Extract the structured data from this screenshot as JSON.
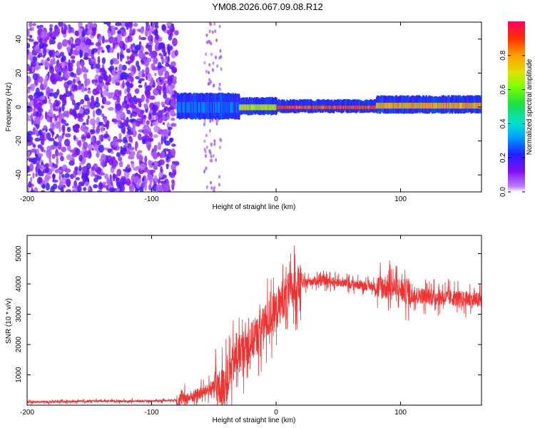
{
  "title": "YM08.2026.067.09.08.R12",
  "chart_data": [
    {
      "type": "heatmap",
      "name": "spectrogram",
      "xlabel": "Height of straight line (km)",
      "ylabel": "Frequency (Hz)",
      "xlim": [
        -200,
        165
      ],
      "ylim": [
        -50,
        50
      ],
      "xticks": [
        -200,
        -100,
        0,
        100
      ],
      "yticks": [
        -40,
        -20,
        0,
        20,
        40
      ],
      "colorbar": {
        "label": "Normalized spectral amplitude",
        "range": [
          0.0,
          1.0
        ],
        "ticks": [
          "0.0",
          "0.2",
          "0.4",
          "0.6",
          "0.8"
        ]
      },
      "regions": [
        {
          "x_from": -200,
          "x_to": -80,
          "description": "broadband noise",
          "amplitude": 0.1
        },
        {
          "x_from": -80,
          "x_to": -30,
          "center_hz": 0,
          "amplitude": 0.35
        },
        {
          "x_from": -30,
          "x_to": 0,
          "center_hz": 0,
          "amplitude": 0.75
        },
        {
          "x_from": 0,
          "x_to": 80,
          "center_hz": 0,
          "amplitude": 0.95
        },
        {
          "x_from": 80,
          "x_to": 165,
          "center_hz": 1,
          "amplitude": 0.85
        }
      ]
    },
    {
      "type": "line",
      "name": "snr",
      "xlabel": "Height of straight line (km)",
      "ylabel": "SNR (10 * v/v)",
      "xlim": [
        -200,
        165
      ],
      "ylim": [
        0,
        5600
      ],
      "xticks": [
        -200,
        -100,
        0,
        100
      ],
      "yticks": [
        1000,
        2000,
        3000,
        4000,
        5000
      ],
      "color": "#ee3333",
      "series": [
        {
          "name": "SNR",
          "x": [
            -200,
            -180,
            -160,
            -140,
            -120,
            -100,
            -80,
            -70,
            -60,
            -50,
            -45,
            -40,
            -35,
            -30,
            -25,
            -20,
            -15,
            -10,
            -5,
            0,
            5,
            10,
            15,
            20,
            30,
            40,
            50,
            60,
            70,
            80,
            90,
            100,
            110,
            120,
            130,
            140,
            150,
            165
          ],
          "y": [
            100,
            110,
            120,
            140,
            130,
            140,
            170,
            250,
            400,
            600,
            500,
            700,
            1300,
            1700,
            1900,
            2100,
            2300,
            2600,
            2900,
            3100,
            3500,
            3700,
            3900,
            4000,
            4100,
            4100,
            4050,
            4000,
            3950,
            3900,
            3900,
            3800,
            3650,
            3600,
            3550,
            3550,
            3500,
            3450
          ]
        }
      ]
    }
  ]
}
